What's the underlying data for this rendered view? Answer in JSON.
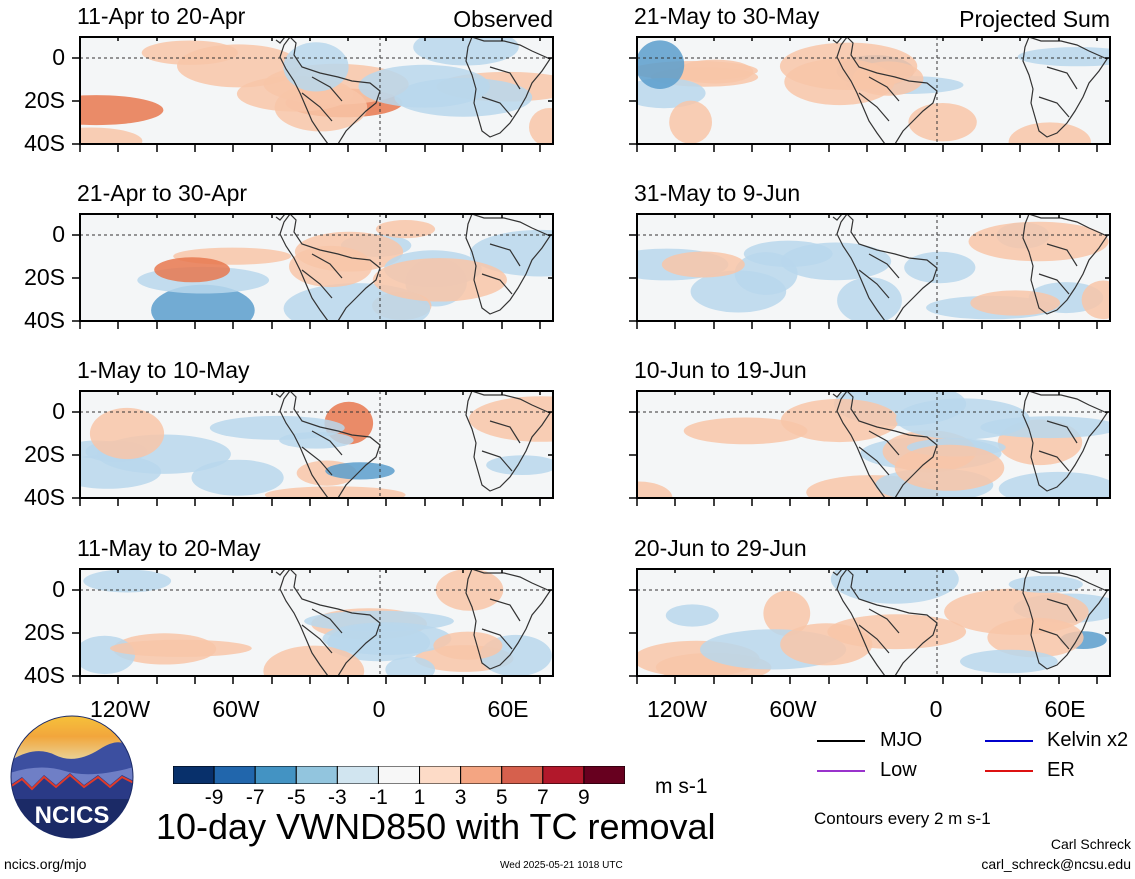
{
  "panels_left": [
    {
      "title": "11-Apr to 20-Apr",
      "tag": "Observed"
    },
    {
      "title": "21-Apr to 30-Apr",
      "tag": ""
    },
    {
      "title": "1-May to 10-May",
      "tag": ""
    },
    {
      "title": "11-May to 20-May",
      "tag": ""
    }
  ],
  "panels_right": [
    {
      "title": "21-May to 30-May",
      "tag": "Projected Sum"
    },
    {
      "title": "31-May to 9-Jun",
      "tag": ""
    },
    {
      "title": "10-Jun to 19-Jun",
      "tag": ""
    },
    {
      "title": "20-Jun to 29-Jun",
      "tag": ""
    }
  ],
  "lat_labels": [
    "0",
    "20S",
    "40S"
  ],
  "lon_labels": [
    "120W",
    "60W",
    "0",
    "60E"
  ],
  "colorbar": {
    "colors": [
      "#08306b",
      "#2166ac",
      "#4393c3",
      "#92c5de",
      "#d1e5f0",
      "#f7f7f7",
      "#fddbc7",
      "#f4a582",
      "#d6604d",
      "#b2182b",
      "#67001f"
    ],
    "labels": [
      "-9",
      "-7",
      "-5",
      "-3",
      "-1",
      "1",
      "3",
      "5",
      "7",
      "9"
    ],
    "units": "m s-1"
  },
  "legend": {
    "items": [
      {
        "label": "MJO",
        "color": "#000000"
      },
      {
        "label": "Kelvin x2",
        "color": "#0000cc"
      },
      {
        "label": "Low",
        "color": "#9933cc"
      },
      {
        "label": "ER",
        "color": "#dd1111"
      }
    ],
    "contours_note": "Contours every 2 m s-1"
  },
  "main_title": "10-day VWND850 with TC removal",
  "logo_text": "NCICS",
  "footer": {
    "left": "ncics.org/mjo",
    "center": "Wed 2025-05-21 1018 UTC",
    "author": "Carl Schreck",
    "email": "carl_schreck@ncsu.edu"
  },
  "colors": {
    "land_outline": "#333333",
    "neg": "#b9d7ec",
    "pos": "#f8c6a8",
    "strong_pos": "#e8784f",
    "strong_neg": "#5a9dcc"
  }
}
